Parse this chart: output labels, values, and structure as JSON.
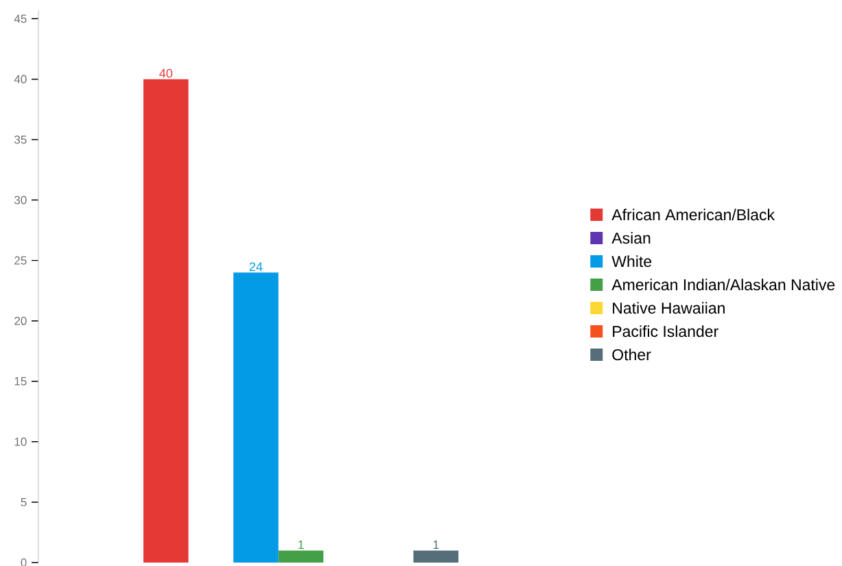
{
  "chart_data": {
    "type": "bar",
    "categories": [
      null
    ],
    "series": [
      {
        "name": "African American/Black",
        "color": "#e53935",
        "values": [
          40
        ]
      },
      {
        "name": "Asian",
        "color": "#5e35b1",
        "values": [
          null
        ]
      },
      {
        "name": "White",
        "color": "#039be5",
        "values": [
          24
        ]
      },
      {
        "name": "American Indian/Alaskan Native",
        "color": "#43a047",
        "values": [
          1
        ]
      },
      {
        "name": "Native Hawaiian",
        "color": "#fdd835",
        "values": [
          null
        ]
      },
      {
        "name": "Pacific Islander",
        "color": "#f4511e",
        "values": [
          null
        ]
      },
      {
        "name": "Other",
        "color": "#546e7a",
        "values": [
          1
        ]
      }
    ],
    "ylim": [
      0,
      45.7
    ],
    "yticks": [
      0,
      5,
      10,
      15,
      20,
      25,
      30,
      35,
      40,
      45
    ],
    "data_labels": true,
    "legend": "right",
    "tick_labels": "y"
  }
}
